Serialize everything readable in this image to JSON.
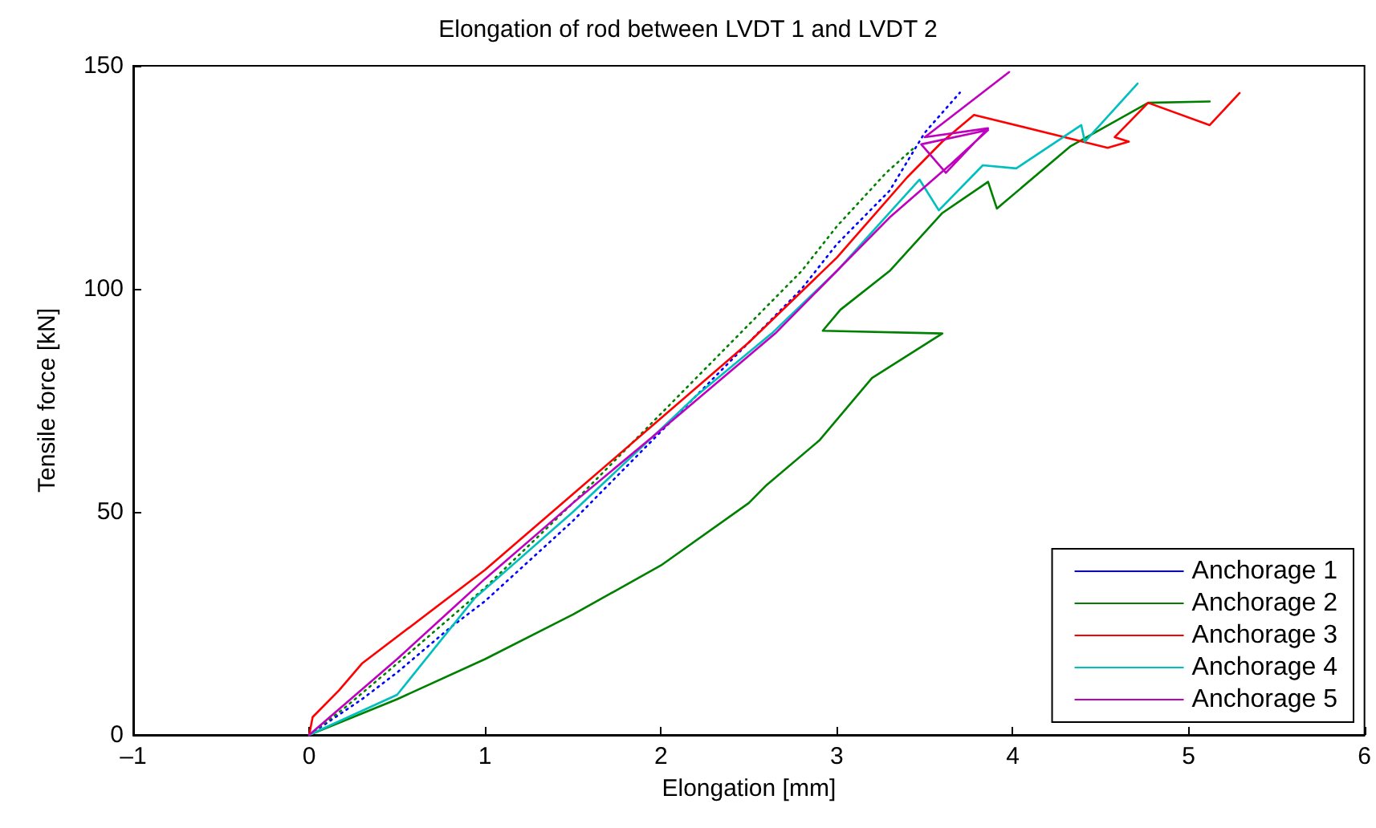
{
  "chart_data": {
    "type": "line",
    "title": "Elongation of rod between LVDT 1 and LVDT 2",
    "xlabel": "Elongation [mm]",
    "ylabel": "Tensile force [kN]",
    "xlim": [
      -1,
      6
    ],
    "xticks": [
      {
        "value": -1,
        "label": "–1"
      },
      0,
      1,
      2,
      3,
      4,
      5,
      6
    ],
    "ylim": [
      0,
      150
    ],
    "yticks": [
      0,
      50,
      100,
      150
    ],
    "grid": false,
    "legend": "bottom right",
    "marker": "none",
    "series": [
      {
        "name": "Anchorage 1",
        "color": "#0000ff",
        "line_style": "dotted",
        "x": [
          0,
          0.3,
          0.5,
          0.8,
          1,
          1.5,
          2,
          2.3,
          2.5,
          2.8,
          3,
          3.3,
          3.5,
          3.7
        ],
        "values": [
          0,
          8,
          14,
          24,
          30,
          48,
          68,
          80,
          88,
          100,
          110,
          122,
          135,
          144
        ]
      },
      {
        "color": "#008000",
        "line_style": "dotted",
        "x": [
          0,
          0.2,
          0.5,
          1,
          1.5,
          2,
          2.5,
          2.8,
          3,
          3.28,
          3.45
        ],
        "values": [
          0,
          6,
          16,
          33,
          52,
          72,
          92,
          104,
          114,
          126,
          132
        ]
      },
      {
        "name": "Anchorage 2",
        "color": "#008000",
        "line_style": "solid",
        "x": [
          0,
          0.5,
          1,
          1.5,
          2,
          2.5,
          2.6,
          2.9,
          3.2,
          3.6,
          2.92,
          3.02,
          3.3,
          3.6,
          3.86,
          3.91,
          4.33,
          4.77,
          5.12
        ],
        "values": [
          0,
          8,
          17,
          27,
          38,
          52,
          56,
          66,
          80,
          90,
          90.6,
          95.3,
          104,
          117,
          124,
          118,
          132,
          141.7,
          142
        ]
      },
      {
        "name": "Anchorage 3",
        "color": "#ff0000",
        "line_style": "solid",
        "x": [
          0,
          0.02,
          0.17,
          0.3,
          1,
          1.5,
          2,
          2.5,
          3,
          3.4,
          3.6,
          3.78,
          4.54,
          4.66,
          4.58,
          4.77,
          5.12,
          5.29
        ],
        "values": [
          0,
          4,
          10,
          16,
          37,
          54,
          71,
          88,
          107,
          125,
          133,
          139,
          131.6,
          133,
          134,
          141.7,
          136.7,
          143.9
        ]
      },
      {
        "name": "Anchorage 4",
        "color": "#00bfbf",
        "line_style": "solid",
        "x": [
          0,
          0.5,
          0.94,
          1.5,
          1.78,
          2.2,
          2.63,
          3,
          3.47,
          3.58,
          3.83,
          4.02,
          4.39,
          4.41,
          4.71
        ],
        "values": [
          0,
          9,
          30.6,
          50,
          60.4,
          76,
          90,
          104,
          124.5,
          117.6,
          127.7,
          127,
          136.7,
          133,
          146
        ]
      },
      {
        "name": "Anchorage 5",
        "color": "#bf00bf",
        "line_style": "solid",
        "x": [
          0,
          0.5,
          1,
          1.5,
          2.08,
          2.65,
          3,
          3.3,
          3.65,
          3.86,
          3.48,
          3.62,
          3.86,
          3.5,
          3.98
        ],
        "values": [
          0,
          17,
          35,
          52,
          71,
          90,
          104,
          116,
          128,
          135.6,
          132.4,
          126,
          136,
          134,
          148.6
        ]
      }
    ]
  }
}
